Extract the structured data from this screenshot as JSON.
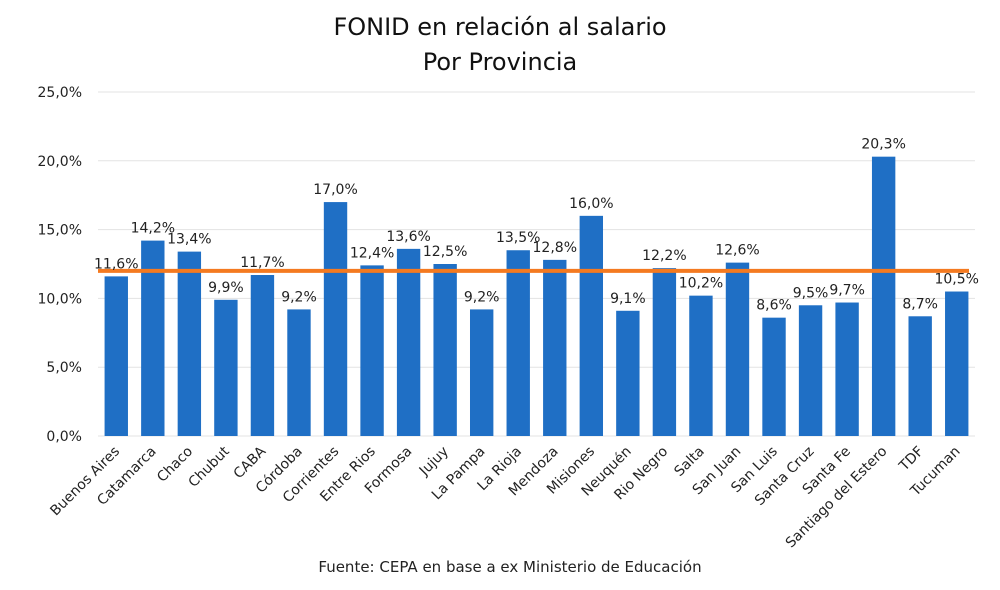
{
  "chart_data": {
    "type": "bar",
    "title": "FONID en relación al salario",
    "subtitle": "Por Provincia",
    "source": "Fuente: CEPA en base a ex Ministerio de Educación",
    "xlabel": "",
    "ylabel": "",
    "ylim": [
      0,
      25
    ],
    "yticks": [
      "0,0%",
      "5,0%",
      "10,0%",
      "15,0%",
      "20,0%",
      "25,0%"
    ],
    "grid": true,
    "categories": [
      "Buenos Aires",
      "Catamarca",
      "Chaco",
      "Chubut",
      "CABA",
      "Córdoba",
      "Corrientes",
      "Entre Rios",
      "Formosa",
      "Jujuy",
      "La Pampa",
      "La Rioja",
      "Mendoza",
      "Misiones",
      "Neuquén",
      "Rio Negro",
      "Salta",
      "San Juan",
      "San Luis",
      "Santa Cruz",
      "Santa Fe",
      "Santiago del Estero",
      "TDF",
      "Tucuman"
    ],
    "values": [
      11.6,
      14.2,
      13.4,
      9.9,
      11.7,
      9.2,
      17.0,
      12.4,
      13.6,
      12.5,
      9.2,
      13.5,
      12.8,
      16.0,
      9.1,
      12.2,
      10.2,
      12.6,
      8.6,
      9.5,
      9.7,
      20.3,
      8.7,
      10.5
    ],
    "data_labels": [
      "11,6%",
      "14,2%",
      "13,4%",
      "9,9%",
      "11,7%",
      "9,2%",
      "17,0%",
      "12,4%",
      "13,6%",
      "12,5%",
      "9,2%",
      "13,5%",
      "12,8%",
      "16,0%",
      "9,1%",
      "12,2%",
      "10,2%",
      "12,6%",
      "8,6%",
      "9,5%",
      "9,7%",
      "20,3%",
      "8,7%",
      "10,5%"
    ],
    "reference_line": {
      "value": 12.0
    },
    "colors": {
      "bar": "#1f6fc5",
      "reference_line": "#f47a20",
      "grid": "#e3e3e3"
    }
  }
}
